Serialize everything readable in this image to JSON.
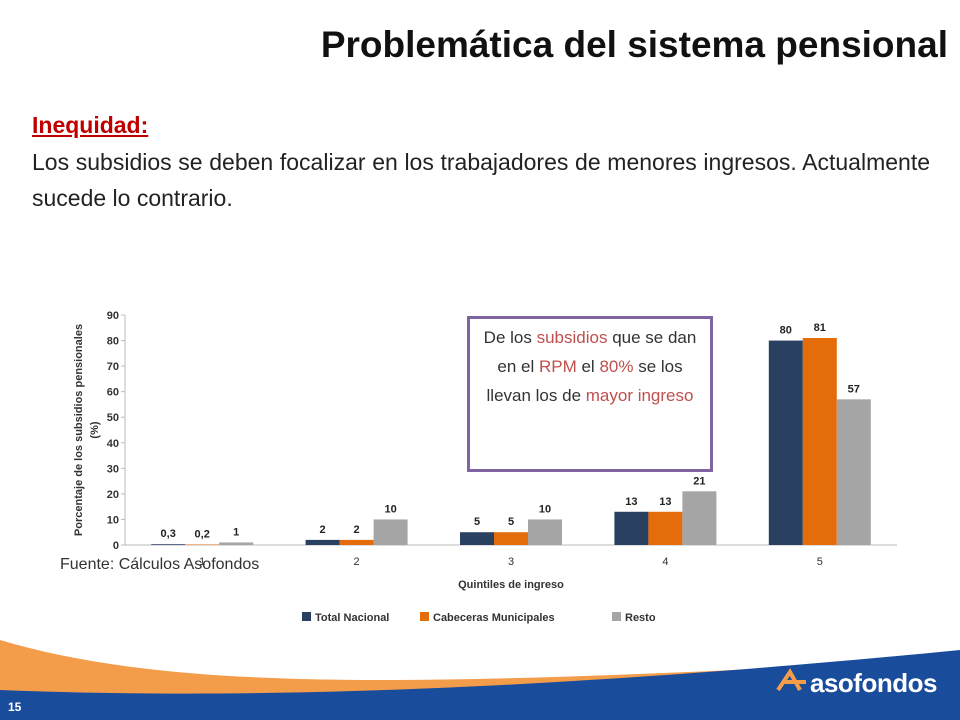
{
  "header": {
    "title": "Problemática del sistema pensional"
  },
  "body": {
    "heading": "Inequidad:",
    "text": "Los subsidios se deben focalizar en los trabajadores de menores ingresos. Actualmente sucede lo contrario."
  },
  "callout": {
    "border_color": "#8064a2",
    "segments": [
      {
        "text": "De los ",
        "color": "#333333"
      },
      {
        "text": "subsidios",
        "color": "#c0504d"
      },
      {
        "text": " que se dan en el ",
        "color": "#333333"
      },
      {
        "text": "RPM",
        "color": "#c0504d"
      },
      {
        "text": " el ",
        "color": "#333333"
      },
      {
        "text": "80%",
        "color": "#c0504d"
      },
      {
        "text": " se los llevan los de ",
        "color": "#333333"
      },
      {
        "text": "mayor ingreso",
        "color": "#c0504d"
      }
    ]
  },
  "source": "Fuente: Cálculos Asofondos",
  "page_number": "15",
  "logo": "asofondos",
  "chart_data": {
    "type": "bar",
    "y_label": [
      "Porcentaje de los subsidios pensionales",
      "(%)"
    ],
    "x_label": "Quintiles de ingreso",
    "categories": [
      "1",
      "2",
      "3",
      "4",
      "5"
    ],
    "series": [
      {
        "name": "Total Nacional",
        "color": "#2a4060",
        "values": [
          0.3,
          2,
          5,
          13,
          80
        ],
        "value_labels": [
          "0,3",
          "2",
          "5",
          "13",
          "80"
        ]
      },
      {
        "name": "Cabeceras Municipales",
        "color": "#e46c0a",
        "values": [
          0.2,
          2,
          5,
          13,
          81
        ],
        "value_labels": [
          "0,2",
          "2",
          "5",
          "13",
          "81"
        ]
      },
      {
        "name": "Resto",
        "color": "#a5a5a5",
        "values": [
          1,
          10,
          10,
          21,
          57
        ],
        "value_labels": [
          "1",
          "10",
          "10",
          "21",
          "57"
        ]
      }
    ],
    "ylim": [
      0,
      90
    ],
    "yticks": [
      0,
      10,
      20,
      30,
      40,
      50,
      60,
      70,
      80,
      90
    ],
    "grid": false,
    "legend": "bottom"
  }
}
